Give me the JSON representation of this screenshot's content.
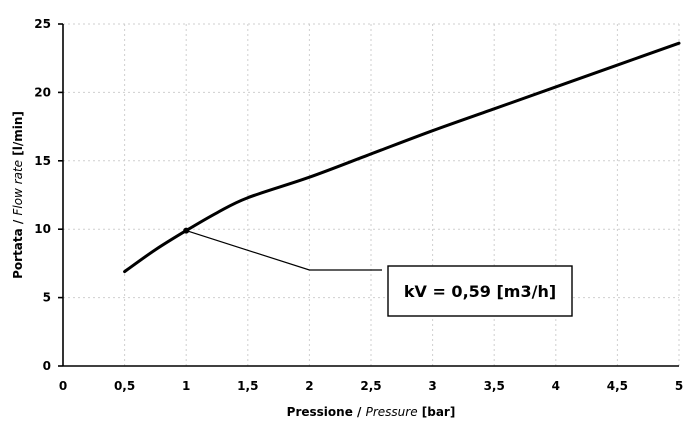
{
  "chart_data": {
    "type": "line",
    "x": [
      0.5,
      0.75,
      1.0,
      1.25,
      1.5,
      2.0,
      2.5,
      3.0,
      3.5,
      4.0,
      4.5,
      5.0
    ],
    "series": [
      {
        "values": [
          6.9,
          8.5,
          9.9,
          11.2,
          12.3,
          13.8,
          15.5,
          17.2,
          18.8,
          20.4,
          22.0,
          23.6
        ]
      }
    ],
    "xlim": [
      0,
      5
    ],
    "ylim": [
      0,
      25
    ],
    "xticks": [
      "0",
      "0,5",
      "1",
      "1,5",
      "2",
      "2,5",
      "3",
      "3,5",
      "4",
      "4,5",
      "5"
    ],
    "yticks": [
      "0",
      "5",
      "10",
      "15",
      "20",
      "25"
    ],
    "xlabel": {
      "main": "Pressione",
      "sep": " / ",
      "alt": "Pressure",
      "unit": " [bar]"
    },
    "ylabel": {
      "main": "Portata",
      "sep": " / ",
      "alt": "Flow rate",
      "unit": " [l/min]"
    },
    "grid": true,
    "annotation": {
      "text": "kV = 0,59 [m3/h]",
      "point": [
        1.0,
        9.9
      ]
    }
  }
}
